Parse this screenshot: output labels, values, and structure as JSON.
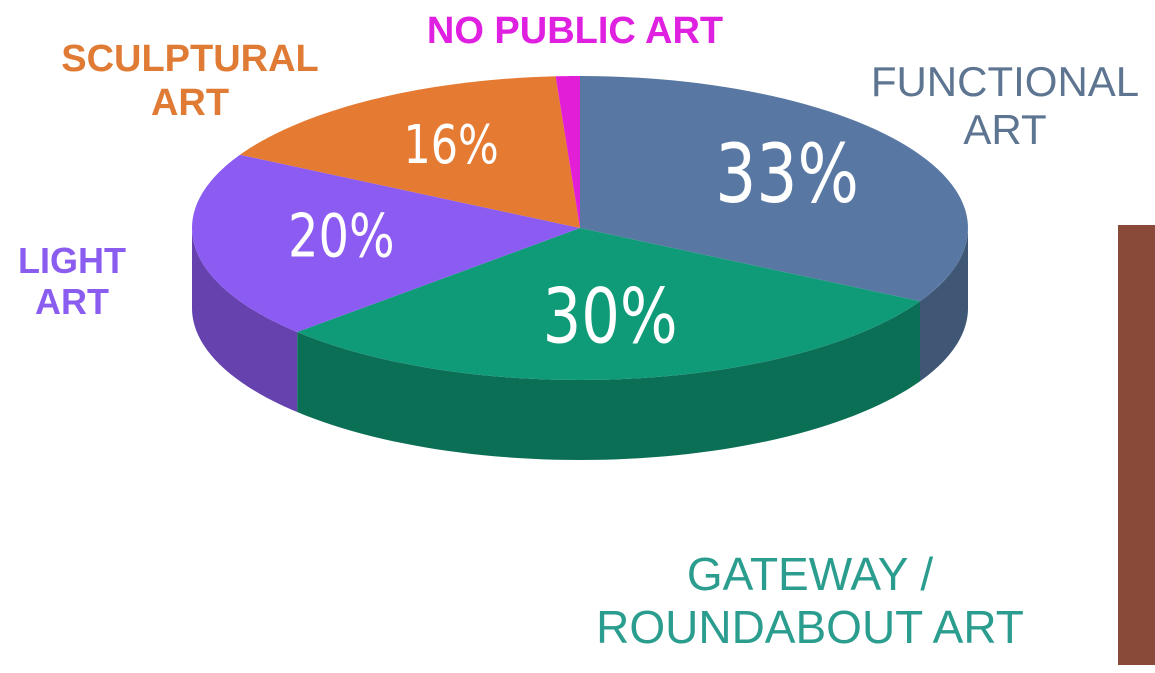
{
  "chart_data": {
    "type": "pie3d",
    "categories": [
      "FUNCTIONAL ART",
      "GATEWAY / ROUNDABOUT ART",
      "LIGHT ART",
      "SCULPTURAL ART",
      "NO PUBLIC ART"
    ],
    "values": [
      33,
      30,
      20,
      16,
      1
    ],
    "value_labels": [
      "33%",
      "30%",
      "20%",
      "16%",
      null
    ],
    "colors": [
      "#5878a3",
      "#0f9a78",
      "#8c5cf2",
      "#e57a33",
      "#e21fd6"
    ],
    "label_colors": [
      "#5d7591",
      "#2a9d8f",
      "#8b5cf0",
      "#e07b35",
      "#e020e0"
    ]
  }
}
